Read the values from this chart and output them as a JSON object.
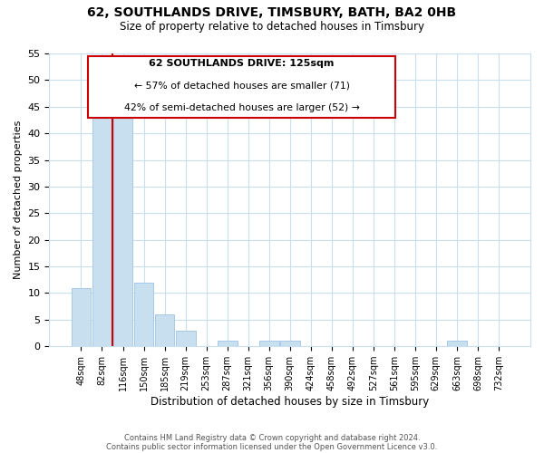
{
  "title": "62, SOUTHLANDS DRIVE, TIMSBURY, BATH, BA2 0HB",
  "subtitle": "Size of property relative to detached houses in Timsbury",
  "xlabel": "Distribution of detached houses by size in Timsbury",
  "ylabel": "Number of detached properties",
  "bar_color": "#c8dff0",
  "bar_edge_color": "#a8c8e8",
  "vline_color": "#cc0000",
  "bin_labels": [
    "48sqm",
    "82sqm",
    "116sqm",
    "150sqm",
    "185sqm",
    "219sqm",
    "253sqm",
    "287sqm",
    "321sqm",
    "356sqm",
    "390sqm",
    "424sqm",
    "458sqm",
    "492sqm",
    "527sqm",
    "561sqm",
    "595sqm",
    "629sqm",
    "663sqm",
    "698sqm",
    "732sqm"
  ],
  "bar_heights": [
    11,
    43,
    45,
    12,
    6,
    3,
    0,
    1,
    0,
    1,
    1,
    0,
    0,
    0,
    0,
    0,
    0,
    0,
    1,
    0,
    0
  ],
  "ylim": [
    0,
    55
  ],
  "yticks": [
    0,
    5,
    10,
    15,
    20,
    25,
    30,
    35,
    40,
    45,
    50,
    55
  ],
  "annotation_title": "62 SOUTHLANDS DRIVE: 125sqm",
  "annotation_line1": "← 57% of detached houses are smaller (71)",
  "annotation_line2": "42% of semi-detached houses are larger (52) →",
  "footer1": "Contains HM Land Registry data © Crown copyright and database right 2024.",
  "footer2": "Contains public sector information licensed under the Open Government Licence v3.0.",
  "background_color": "#ffffff",
  "grid_color": "#c8dff0"
}
